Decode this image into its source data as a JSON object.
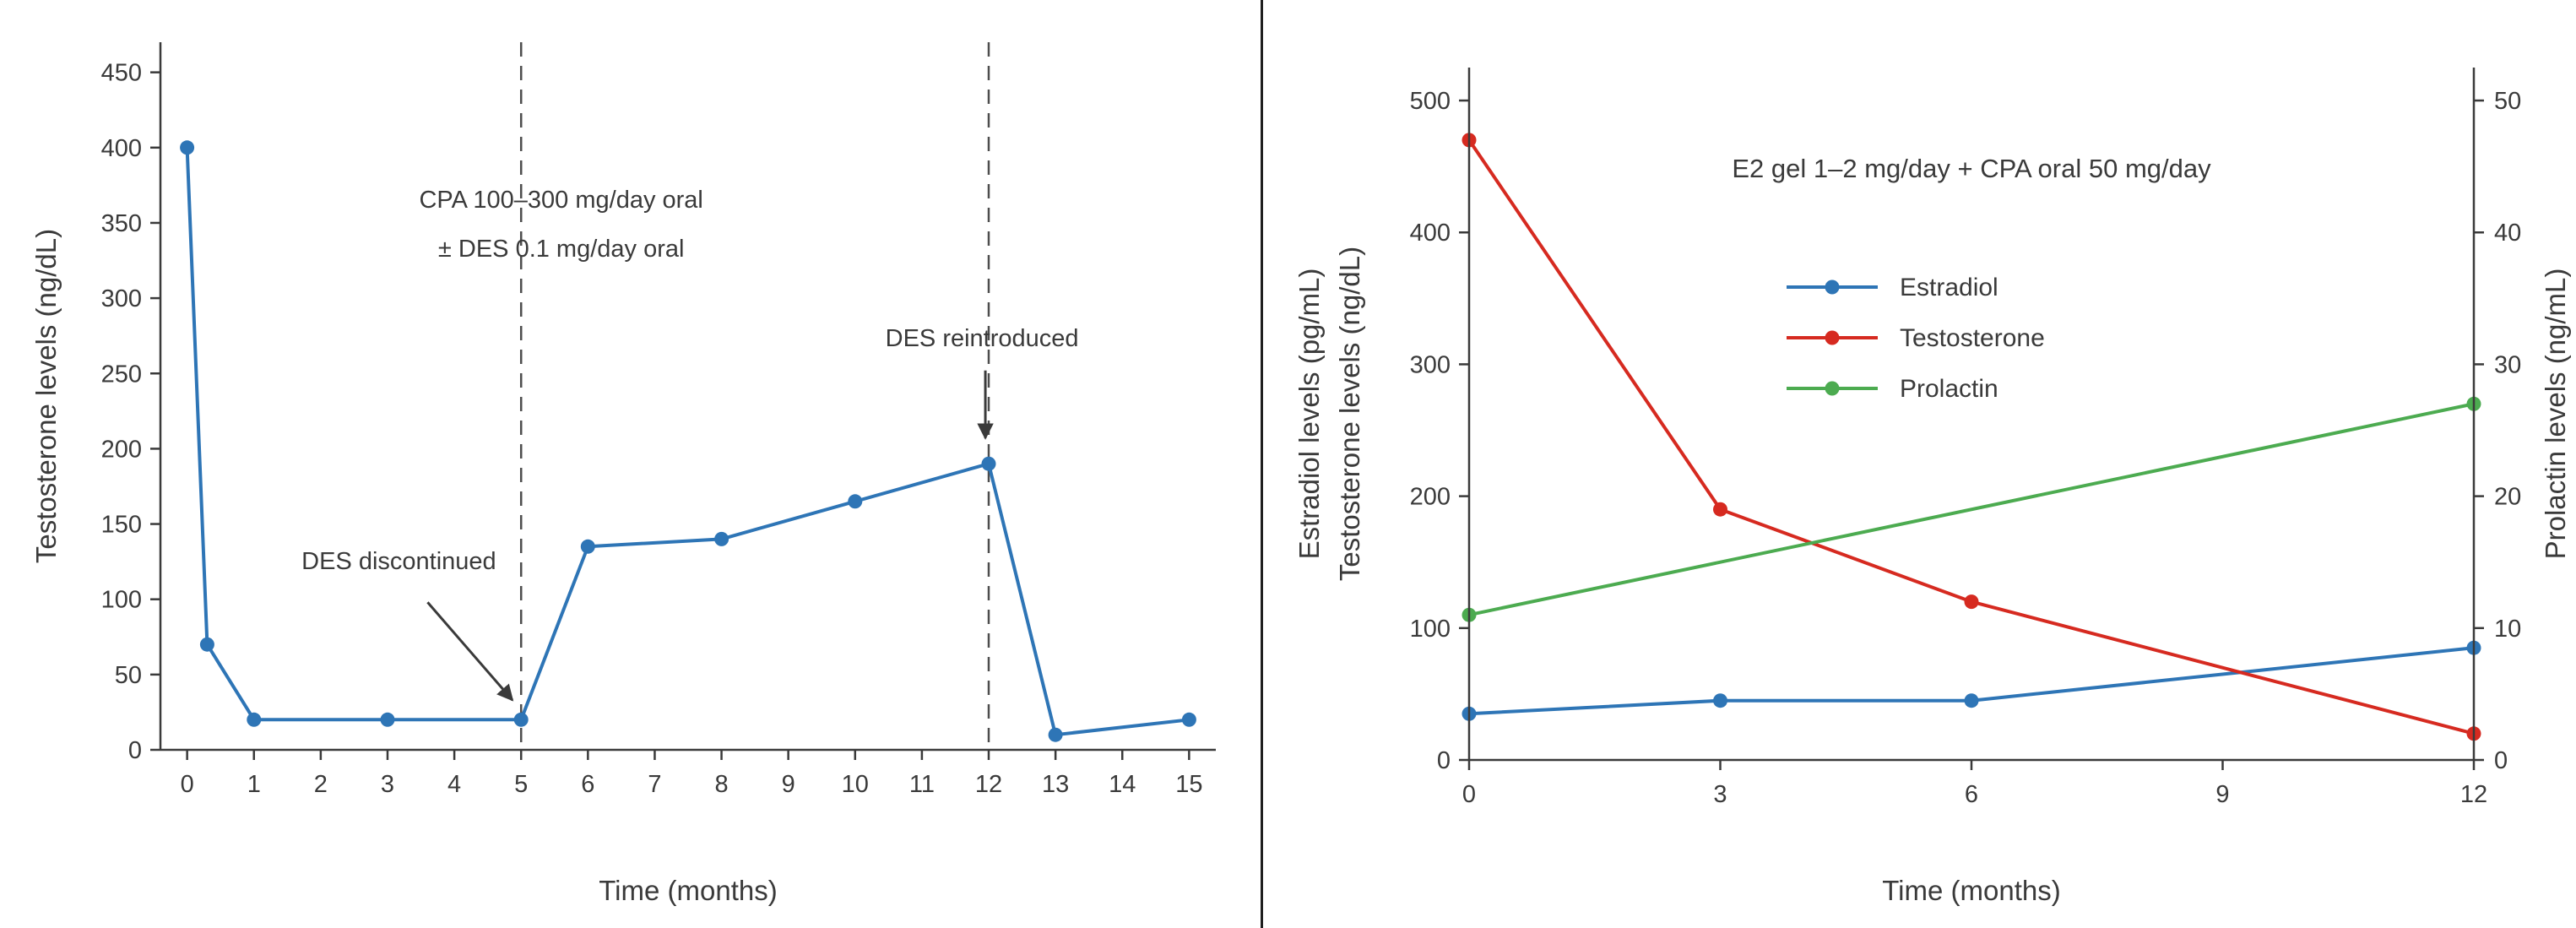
{
  "style": {
    "background": "#ffffff",
    "divider_color": "#1f1f1f",
    "ink_color": "#3a3a3a",
    "vline_color": "#4d4d4d",
    "blue": "#2e75b6",
    "red": "#d62a20",
    "green": "#4cab50"
  },
  "chart_data": [
    {
      "type": "line",
      "title": "",
      "xlabel": "Time (months)",
      "ylabel": "Testosterone levels (ng/dL)",
      "xlim": [
        -0.4,
        15.4
      ],
      "ylim": [
        0,
        470
      ],
      "xticks": [
        0,
        1,
        2,
        3,
        4,
        5,
        6,
        7,
        8,
        9,
        10,
        11,
        12,
        13,
        14,
        15
      ],
      "yticks": [
        0,
        50,
        100,
        150,
        200,
        250,
        300,
        350,
        400,
        450
      ],
      "grid": false,
      "series": [
        {
          "name": "Testosterone",
          "color": "#2e75b6",
          "axis": "left",
          "x": [
            0,
            0.3,
            1,
            3,
            5,
            6,
            8,
            10,
            12,
            13,
            15
          ],
          "y": [
            400,
            70,
            20,
            20,
            20,
            135,
            140,
            165,
            190,
            10,
            20
          ]
        }
      ],
      "vlines": [
        {
          "x": 5,
          "style": "dashed"
        },
        {
          "x": 12,
          "style": "dashed"
        }
      ],
      "annotations": [
        {
          "lines": [
            "CPA 100–300 mg/day oral",
            "± DES 0.1 mg/day oral"
          ],
          "x": 5.6,
          "y": 360
        },
        {
          "lines": [
            "DES discontinued"
          ],
          "x": 3.17,
          "y": 120,
          "arrow": {
            "from": [
              3.6,
              98
            ],
            "to": [
              4.87,
              33
            ]
          }
        },
        {
          "lines": [
            "DES reintroduced"
          ],
          "x": 11.9,
          "y": 268,
          "arrow": {
            "from": [
              11.95,
              252
            ],
            "to": [
              11.95,
              207
            ]
          }
        }
      ]
    },
    {
      "type": "line",
      "title": "E2 gel 1–2 mg/day + CPA oral 50 mg/day",
      "xlabel": "Time (months)",
      "ylabels_left": [
        "Estradiol levels (pg/mL)",
        "Testosterone levels (ng/dL)"
      ],
      "ylabel_right": "Prolactin levels (ng/mL)",
      "xlim": [
        0,
        12
      ],
      "ylim": [
        0,
        525
      ],
      "y2lim": [
        0,
        52.5
      ],
      "xticks": [
        0,
        3,
        6,
        9,
        12
      ],
      "yticks": [
        0,
        100,
        200,
        300,
        400,
        500
      ],
      "y2ticks": [
        0,
        10,
        20,
        30,
        40,
        50
      ],
      "grid": false,
      "legend": {
        "visible": true,
        "position": "upper-center-inside"
      },
      "series": [
        {
          "name": "Estradiol",
          "color": "#2e75b6",
          "axis": "left",
          "x": [
            0,
            3,
            6,
            12
          ],
          "y": [
            35,
            45,
            45,
            85
          ]
        },
        {
          "name": "Testosterone",
          "color": "#d62a20",
          "axis": "left",
          "x": [
            0,
            3,
            6,
            12
          ],
          "y": [
            470,
            190,
            120,
            20
          ]
        },
        {
          "name": "Prolactin",
          "color": "#4cab50",
          "axis": "right",
          "x": [
            0,
            12
          ],
          "y": [
            11,
            27
          ]
        }
      ]
    }
  ]
}
